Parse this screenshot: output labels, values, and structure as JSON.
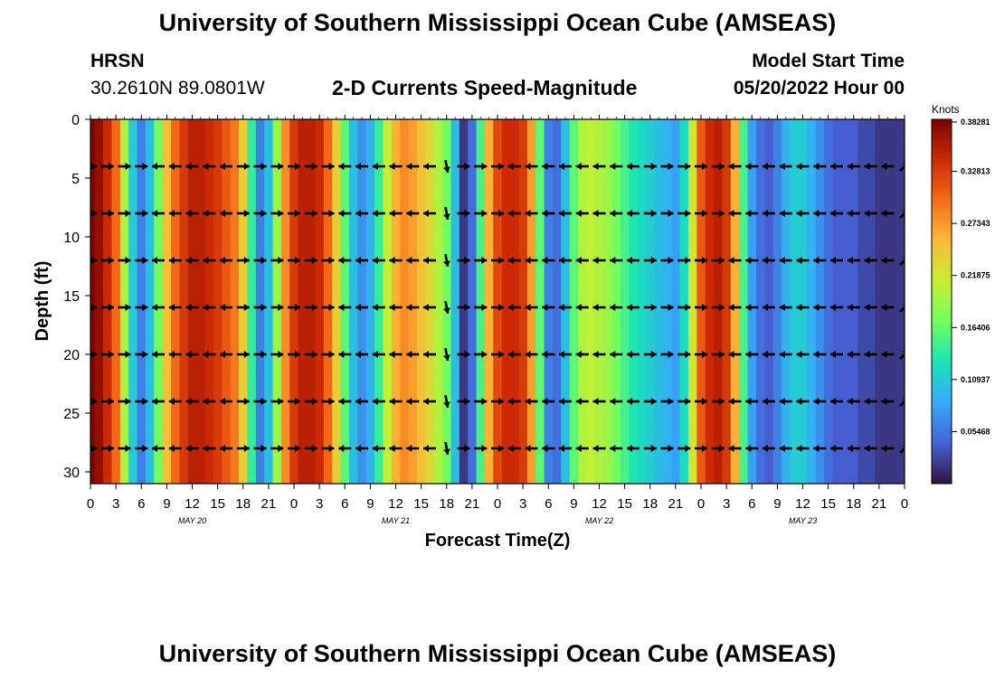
{
  "header": {
    "title": "University of Southern Mississippi Ocean Cube (AMSEAS)",
    "station": "HRSN",
    "coordinates": "30.2610N  89.0801W",
    "subtitle": "2-D Currents Speed-Magnitude",
    "model_start_label": "Model Start Time",
    "model_start_value": "05/20/2022 Hour 00"
  },
  "footer": {
    "title": "University of Southern Mississippi Ocean Cube (AMSEAS)"
  },
  "chart_data": {
    "type": "heatmap",
    "title": "2-D Currents Speed-Magnitude",
    "xlabel": "Forecast Time(Z)",
    "ylabel": "Depth (ft)",
    "xlim_hours": [
      0,
      96
    ],
    "ylim": [
      0,
      31
    ],
    "x_tick_hours": [
      0,
      3,
      6,
      9,
      12,
      15,
      18,
      21,
      24,
      27,
      30,
      33,
      36,
      39,
      42,
      45,
      48,
      51,
      54,
      57,
      60,
      63,
      66,
      69,
      72,
      75,
      78,
      81,
      84,
      87,
      90,
      93,
      96
    ],
    "x_tick_labels": [
      "0",
      "3",
      "6",
      "9",
      "12",
      "15",
      "18",
      "21",
      "0",
      "3",
      "6",
      "9",
      "12",
      "15",
      "18",
      "21",
      "0",
      "3",
      "6",
      "9",
      "12",
      "15",
      "18",
      "21",
      "0",
      "3",
      "6",
      "9",
      "12",
      "15",
      "18",
      "21",
      "0"
    ],
    "date_labels": [
      {
        "text": "MAY 20",
        "hour": 12
      },
      {
        "text": "MAY 21",
        "hour": 36
      },
      {
        "text": "MAY 22",
        "hour": 60
      },
      {
        "text": "MAY 23",
        "hour": 84
      }
    ],
    "y_ticks": [
      0,
      5,
      10,
      15,
      20,
      25,
      30
    ],
    "colorbar": {
      "units": "Knots",
      "min": 0.0,
      "max": 0.3828,
      "tick_labels": [
        "0.38281",
        "0.32813",
        "0.27343",
        "0.21875",
        "0.16406",
        "0.10937",
        "0.05468"
      ],
      "tick_values": [
        0.38281,
        0.32813,
        0.27343,
        0.21875,
        0.16406,
        0.10937,
        0.05468
      ],
      "colormap": [
        "#30123b",
        "#4662d7",
        "#36aaf9",
        "#1ae4b6",
        "#72fe5e",
        "#c7ef34",
        "#faba39",
        "#f66b19",
        "#cb2a04",
        "#7a0403"
      ]
    },
    "speed_profile_hours": [
      0,
      1,
      2,
      3,
      4,
      5,
      6,
      7,
      8,
      9,
      10,
      11,
      12,
      13,
      14,
      15,
      16,
      17,
      18,
      19,
      20,
      21,
      22,
      23,
      24,
      25,
      26,
      27,
      28,
      29,
      30,
      31,
      32,
      33,
      34,
      35,
      36,
      37,
      38,
      39,
      40,
      41,
      42,
      43,
      44,
      45,
      46,
      47,
      48,
      49,
      50,
      51,
      52,
      53,
      54,
      55,
      56,
      57,
      58,
      59,
      60,
      61,
      62,
      63,
      64,
      65,
      66,
      67,
      68,
      69,
      70,
      71,
      72,
      73,
      74,
      75,
      76,
      77,
      78,
      79,
      80,
      81,
      82,
      83,
      84,
      85,
      86,
      87,
      88,
      89,
      90,
      91,
      92,
      93,
      94,
      95,
      96
    ],
    "speed_profile_knots": [
      0.38,
      0.37,
      0.34,
      0.3,
      0.2,
      0.11,
      0.06,
      0.1,
      0.17,
      0.25,
      0.3,
      0.33,
      0.35,
      0.35,
      0.34,
      0.33,
      0.31,
      0.29,
      0.24,
      0.14,
      0.06,
      0.1,
      0.19,
      0.28,
      0.33,
      0.35,
      0.35,
      0.34,
      0.3,
      0.24,
      0.16,
      0.1,
      0.07,
      0.09,
      0.14,
      0.21,
      0.26,
      0.28,
      0.27,
      0.25,
      0.23,
      0.2,
      0.17,
      0.1,
      0.02,
      0.05,
      0.15,
      0.26,
      0.32,
      0.34,
      0.34,
      0.33,
      0.27,
      0.16,
      0.06,
      0.05,
      0.1,
      0.16,
      0.2,
      0.21,
      0.2,
      0.19,
      0.17,
      0.15,
      0.13,
      0.12,
      0.11,
      0.1,
      0.09,
      0.08,
      0.12,
      0.22,
      0.31,
      0.34,
      0.35,
      0.33,
      0.26,
      0.15,
      0.08,
      0.05,
      0.04,
      0.06,
      0.09,
      0.11,
      0.11,
      0.09,
      0.07,
      0.05,
      0.04,
      0.04,
      0.04,
      0.03,
      0.03,
      0.02,
      0.02,
      0.02,
      0.02
    ],
    "vector_depths_ft": [
      4,
      8,
      12,
      16,
      20,
      24,
      28
    ],
    "vector_hours": [
      0,
      2,
      4,
      6,
      8,
      10,
      12,
      14,
      16,
      18,
      20,
      22,
      24,
      26,
      28,
      30,
      32,
      34,
      36,
      38,
      40,
      42,
      44,
      46,
      48,
      50,
      52,
      54,
      56,
      58,
      60,
      62,
      64,
      66,
      68,
      70,
      72,
      74,
      76,
      78,
      80,
      82,
      84,
      86,
      88,
      90,
      92,
      94,
      96
    ],
    "vector_direction_deg": [
      90,
      90,
      90,
      90,
      270,
      270,
      270,
      270,
      270,
      90,
      90,
      90,
      90,
      90,
      90,
      270,
      270,
      270,
      270,
      270,
      270,
      170,
      90,
      90,
      90,
      270,
      270,
      270,
      270,
      270,
      270,
      270,
      270,
      90,
      90,
      90,
      90,
      90,
      270,
      270,
      270,
      270,
      270,
      270,
      270,
      270,
      270,
      270,
      45
    ]
  }
}
